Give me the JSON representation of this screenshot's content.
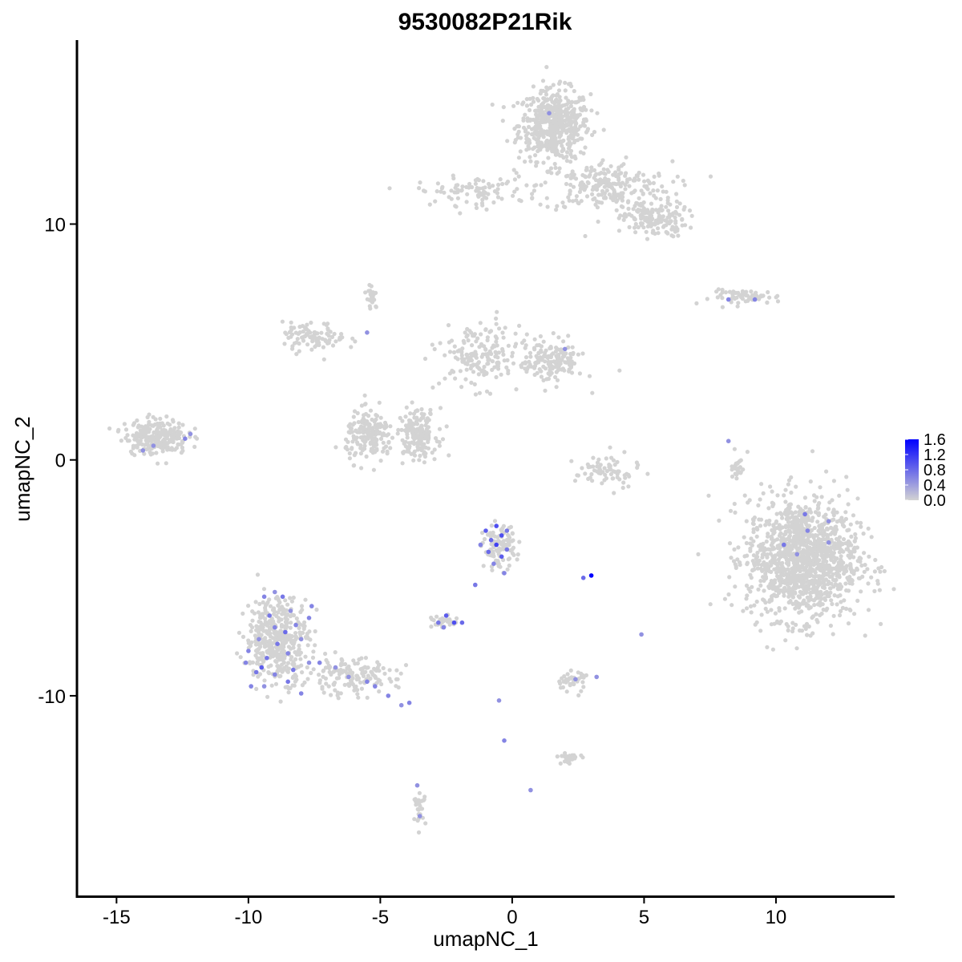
{
  "chart_data": {
    "type": "scatter",
    "title": "9530082P21Rik",
    "xlabel": "umapNC_1",
    "ylabel": "umapNC_2",
    "xlim": [
      -16.5,
      14.5
    ],
    "ylim": [
      -18.5,
      17.8
    ],
    "x_ticks": [
      -15,
      -10,
      -5,
      0,
      5,
      10
    ],
    "x_tick_labels": [
      "-15",
      "-10",
      "-5",
      "0",
      "5",
      "10"
    ],
    "y_ticks": [
      -10,
      0,
      10
    ],
    "y_tick_labels": [
      "-10",
      "0",
      "10"
    ],
    "grid": false,
    "legend_placement": "right",
    "color_scale": {
      "low_color": "#d3d3d3",
      "high_color": "#0000ff",
      "min": 0.0,
      "max": 1.6,
      "breaks": [
        0.0,
        0.4,
        0.8,
        1.2,
        1.6
      ],
      "labels": [
        "0.0",
        "0.4",
        "0.8",
        "1.2",
        "1.6"
      ]
    },
    "clusters": [
      {
        "cx": 1.6,
        "cy": 14.2,
        "sx": 0.9,
        "sy": 1.0,
        "n": 520
      },
      {
        "cx": 3.5,
        "cy": 11.6,
        "sx": 1.7,
        "sy": 0.7,
        "n": 240
      },
      {
        "cx": 5.4,
        "cy": 10.2,
        "sx": 0.8,
        "sy": 0.5,
        "n": 160
      },
      {
        "cx": -1.5,
        "cy": 11.4,
        "sx": 1.4,
        "sy": 0.4,
        "n": 90
      },
      {
        "cx": 8.9,
        "cy": 6.9,
        "sx": 0.9,
        "sy": 0.2,
        "n": 60
      },
      {
        "cx": 11.0,
        "cy": -4.2,
        "sx": 1.4,
        "sy": 1.7,
        "n": 1300
      },
      {
        "cx": 8.5,
        "cy": -0.2,
        "sx": 0.15,
        "sy": 0.6,
        "n": 25
      },
      {
        "cx": -13.5,
        "cy": 1.0,
        "sx": 0.8,
        "sy": 0.5,
        "n": 240
      },
      {
        "cx": -7.5,
        "cy": 5.2,
        "sx": 0.8,
        "sy": 0.4,
        "n": 90
      },
      {
        "cx": -5.4,
        "cy": 1.0,
        "sx": 0.6,
        "sy": 0.7,
        "n": 170
      },
      {
        "cx": -3.6,
        "cy": 1.1,
        "sx": 0.5,
        "sy": 0.7,
        "n": 170
      },
      {
        "cx": -1.2,
        "cy": 4.4,
        "sx": 1.0,
        "sy": 0.9,
        "n": 170
      },
      {
        "cx": 1.5,
        "cy": 4.2,
        "sx": 0.8,
        "sy": 0.6,
        "n": 160
      },
      {
        "cx": 3.6,
        "cy": -0.5,
        "sx": 0.8,
        "sy": 0.5,
        "n": 70
      },
      {
        "cx": -0.5,
        "cy": -3.7,
        "sx": 0.4,
        "sy": 0.6,
        "n": 110
      },
      {
        "cx": -2.6,
        "cy": -6.9,
        "sx": 0.3,
        "sy": 0.2,
        "n": 30
      },
      {
        "cx": -8.9,
        "cy": -7.6,
        "sx": 0.8,
        "sy": 1.2,
        "n": 420
      },
      {
        "cx": -6.2,
        "cy": -9.2,
        "sx": 1.2,
        "sy": 0.5,
        "n": 150
      },
      {
        "cx": 2.2,
        "cy": -9.4,
        "sx": 0.4,
        "sy": 0.3,
        "n": 40
      },
      {
        "cx": 2.2,
        "cy": -12.6,
        "sx": 0.3,
        "sy": 0.15,
        "n": 25
      },
      {
        "cx": -3.5,
        "cy": -14.8,
        "sx": 0.15,
        "sy": 0.4,
        "n": 25
      },
      {
        "cx": -5.3,
        "cy": 6.9,
        "sx": 0.15,
        "sy": 0.35,
        "n": 25
      }
    ],
    "expressed_points": [
      {
        "x": 1.4,
        "y": 14.7,
        "v": 0.5
      },
      {
        "x": -5.5,
        "y": 5.4,
        "v": 0.5
      },
      {
        "x": 2.0,
        "y": 4.7,
        "v": 0.5
      },
      {
        "x": 8.2,
        "y": 6.8,
        "v": 0.6
      },
      {
        "x": 9.2,
        "y": 6.8,
        "v": 0.6
      },
      {
        "x": -12.2,
        "y": 1.1,
        "v": 0.5
      },
      {
        "x": -12.4,
        "y": 0.9,
        "v": 0.6
      },
      {
        "x": -13.6,
        "y": 0.6,
        "v": 0.5
      },
      {
        "x": -14.0,
        "y": 0.4,
        "v": 0.5
      },
      {
        "x": 8.2,
        "y": 0.8,
        "v": 0.5
      },
      {
        "x": 11.1,
        "y": -2.3,
        "v": 0.7
      },
      {
        "x": 11.2,
        "y": -3.0,
        "v": 0.6
      },
      {
        "x": 10.3,
        "y": -3.6,
        "v": 0.7
      },
      {
        "x": 12.0,
        "y": -2.6,
        "v": 0.5
      },
      {
        "x": 12.0,
        "y": -3.5,
        "v": 0.5
      },
      {
        "x": 10.8,
        "y": -4.0,
        "v": 0.5
      },
      {
        "x": 3.0,
        "y": -4.9,
        "v": 1.6
      },
      {
        "x": 2.7,
        "y": -5.0,
        "v": 0.8
      },
      {
        "x": -0.6,
        "y": -2.8,
        "v": 1.0
      },
      {
        "x": -1.0,
        "y": -3.0,
        "v": 0.9
      },
      {
        "x": -0.4,
        "y": -3.2,
        "v": 1.0
      },
      {
        "x": -0.8,
        "y": -3.4,
        "v": 0.8
      },
      {
        "x": -0.2,
        "y": -3.0,
        "v": 0.7
      },
      {
        "x": -0.9,
        "y": -3.9,
        "v": 0.8
      },
      {
        "x": -0.4,
        "y": -4.1,
        "v": 0.9
      },
      {
        "x": -0.2,
        "y": -3.8,
        "v": 0.7
      },
      {
        "x": -0.7,
        "y": -4.4,
        "v": 0.6
      },
      {
        "x": -0.3,
        "y": -4.8,
        "v": 0.6
      },
      {
        "x": -1.2,
        "y": -3.6,
        "v": 0.6
      },
      {
        "x": -0.6,
        "y": -3.6,
        "v": 1.1
      },
      {
        "x": -1.4,
        "y": -5.3,
        "v": 0.7
      },
      {
        "x": -2.5,
        "y": -6.6,
        "v": 0.9
      },
      {
        "x": -2.2,
        "y": -6.9,
        "v": 1.0
      },
      {
        "x": -2.8,
        "y": -6.9,
        "v": 0.7
      },
      {
        "x": -1.9,
        "y": -6.9,
        "v": 0.8
      },
      {
        "x": -2.6,
        "y": -7.1,
        "v": 0.6
      },
      {
        "x": -9.4,
        "y": -5.8,
        "v": 0.6
      },
      {
        "x": -9.0,
        "y": -5.6,
        "v": 0.5
      },
      {
        "x": -8.7,
        "y": -5.8,
        "v": 0.7
      },
      {
        "x": -7.6,
        "y": -6.2,
        "v": 0.6
      },
      {
        "x": -9.2,
        "y": -6.6,
        "v": 0.7
      },
      {
        "x": -8.4,
        "y": -6.4,
        "v": 0.5
      },
      {
        "x": -7.7,
        "y": -6.7,
        "v": 0.6
      },
      {
        "x": -9.0,
        "y": -7.1,
        "v": 0.6
      },
      {
        "x": -8.6,
        "y": -7.3,
        "v": 0.8
      },
      {
        "x": -8.2,
        "y": -7.0,
        "v": 0.6
      },
      {
        "x": -9.6,
        "y": -7.6,
        "v": 0.5
      },
      {
        "x": -8.9,
        "y": -7.8,
        "v": 0.7
      },
      {
        "x": -8.0,
        "y": -7.6,
        "v": 0.5
      },
      {
        "x": -10.0,
        "y": -8.1,
        "v": 0.6
      },
      {
        "x": -9.3,
        "y": -8.4,
        "v": 0.7
      },
      {
        "x": -8.5,
        "y": -8.2,
        "v": 0.6
      },
      {
        "x": -7.7,
        "y": -8.6,
        "v": 0.5
      },
      {
        "x": -9.7,
        "y": -9.0,
        "v": 0.7
      },
      {
        "x": -9.0,
        "y": -9.1,
        "v": 0.6
      },
      {
        "x": -8.3,
        "y": -8.9,
        "v": 0.7
      },
      {
        "x": -7.3,
        "y": -8.6,
        "v": 0.6
      },
      {
        "x": -6.7,
        "y": -8.8,
        "v": 0.5
      },
      {
        "x": -9.9,
        "y": -9.6,
        "v": 0.6
      },
      {
        "x": -9.4,
        "y": -9.6,
        "v": 0.5
      },
      {
        "x": -8.5,
        "y": -9.4,
        "v": 0.7
      },
      {
        "x": -8.0,
        "y": -9.9,
        "v": 0.6
      },
      {
        "x": -6.2,
        "y": -9.2,
        "v": 0.5
      },
      {
        "x": -5.5,
        "y": -9.4,
        "v": 0.6
      },
      {
        "x": -5.2,
        "y": -9.6,
        "v": 0.6
      },
      {
        "x": -4.7,
        "y": -10.0,
        "v": 0.6
      },
      {
        "x": -4.2,
        "y": -10.4,
        "v": 0.5
      },
      {
        "x": -3.9,
        "y": -10.3,
        "v": 0.6
      },
      {
        "x": -10.1,
        "y": -8.6,
        "v": 0.6
      },
      {
        "x": -9.5,
        "y": -8.8,
        "v": 0.9
      },
      {
        "x": -0.5,
        "y": -10.2,
        "v": 0.5
      },
      {
        "x": -0.3,
        "y": -11.9,
        "v": 0.6
      },
      {
        "x": 0.7,
        "y": -14.0,
        "v": 0.5
      },
      {
        "x": 4.9,
        "y": -7.4,
        "v": 0.5
      },
      {
        "x": 2.4,
        "y": -9.3,
        "v": 0.5
      },
      {
        "x": 3.2,
        "y": -9.2,
        "v": 0.5
      },
      {
        "x": -3.5,
        "y": -15.1,
        "v": 0.5
      },
      {
        "x": -3.6,
        "y": -13.8,
        "v": 0.5
      }
    ]
  }
}
